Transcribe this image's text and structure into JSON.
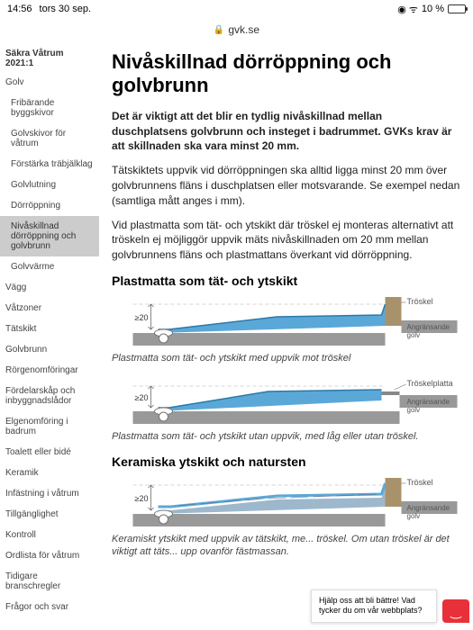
{
  "status": {
    "time": "14:56",
    "date": "tors 30 sep.",
    "battery_pct": "10 %",
    "battery_fill_pct": 10,
    "battery_color": "#e8303a"
  },
  "url": {
    "lock": "🔒",
    "text": "gvk.se"
  },
  "sidebar": {
    "title": "Säkra Våtrum 2021:1",
    "items": [
      {
        "label": "Golv",
        "type": "item"
      },
      {
        "label": "Fribärande byggskivor",
        "type": "sub"
      },
      {
        "label": "Golvskivor för våtrum",
        "type": "sub"
      },
      {
        "label": "Förstärka träbjälklag",
        "type": "sub"
      },
      {
        "label": "Golvlutning",
        "type": "sub"
      },
      {
        "label": "Dörröppning",
        "type": "sub"
      },
      {
        "label": "Nivåskillnad dörröppning och golvbrunn",
        "type": "active"
      },
      {
        "label": "Golvvärme",
        "type": "sub"
      },
      {
        "label": "Vägg",
        "type": "item"
      },
      {
        "label": "Våtzoner",
        "type": "item"
      },
      {
        "label": "Tätskikt",
        "type": "item"
      },
      {
        "label": "Golvbrunn",
        "type": "item"
      },
      {
        "label": "Rörgenomföringar",
        "type": "item"
      },
      {
        "label": "Fördelarskåp och inbyggnadslådor",
        "type": "item"
      },
      {
        "label": "Elgenomföring i badrum",
        "type": "item"
      },
      {
        "label": "Toalett eller bidé",
        "type": "item"
      },
      {
        "label": "Keramik",
        "type": "item"
      },
      {
        "label": "Infästning i våtrum",
        "type": "item"
      },
      {
        "label": "Tillgänglighet",
        "type": "item"
      },
      {
        "label": "Kontroll",
        "type": "item"
      },
      {
        "label": "Ordlista för våtrum",
        "type": "item"
      },
      {
        "label": "Tidigare branschregler",
        "type": "item"
      },
      {
        "label": "Frågor och svar",
        "type": "item"
      }
    ]
  },
  "main": {
    "h1": "Nivåskillnad dörröppning och golvbrunn",
    "lead": "Det är viktigt att det blir en tydlig nivåskillnad mellan duschplatsens golvbrunn och insteget i badrummet. GVKs krav är att skillnaden ska vara minst 20 mm.",
    "p1": "Tätskiktets uppvik vid dörröppningen ska alltid ligga minst 20 mm över golvbrunnens fläns i duschplatsen eller motsvarande. Se exempel nedan (samtliga mått anges i mm).",
    "p2": "Vid plastmatta som tät- och ytskikt där tröskel ej monteras alternativt att tröskeln ej möjliggör uppvik mäts nivåskillnaden om 20 mm mellan golvbrunnens fläns och plastmattans överkant vid dörröppning.",
    "h2a": "Plastmatta som tät- och ytskikt",
    "cap1": "Plastmatta som tät- och ytskikt med uppvik mot tröskel",
    "cap2": "Plastmatta som tät- och ytskikt utan uppvik, med låg eller utan tröskel.",
    "h2b": "Keramiska ytskikt och natursten",
    "cap3": "Keramiskt ytskikt med uppvik av tätskikt, me... tröskel. Om utan tröskel är det viktigt att täts... upp ovanför fästmassan."
  },
  "diagrams": {
    "colors": {
      "mat": "#5aa8d8",
      "mat_dark": "#2d78a8",
      "floor": "#999999",
      "floor_dark": "#777777",
      "threshold": "#a8926b",
      "line": "#555555",
      "label": "#555555"
    },
    "label_measure": "≥20",
    "label_threshold": "Tröskel",
    "label_threshold_plate": "Tröskelplatta",
    "label_floor": "Angränsande golv"
  },
  "feedback": {
    "text": "Hjälp oss att bli bättre! Vad tycker du om vår webbplats?",
    "chat_face": "☺"
  }
}
